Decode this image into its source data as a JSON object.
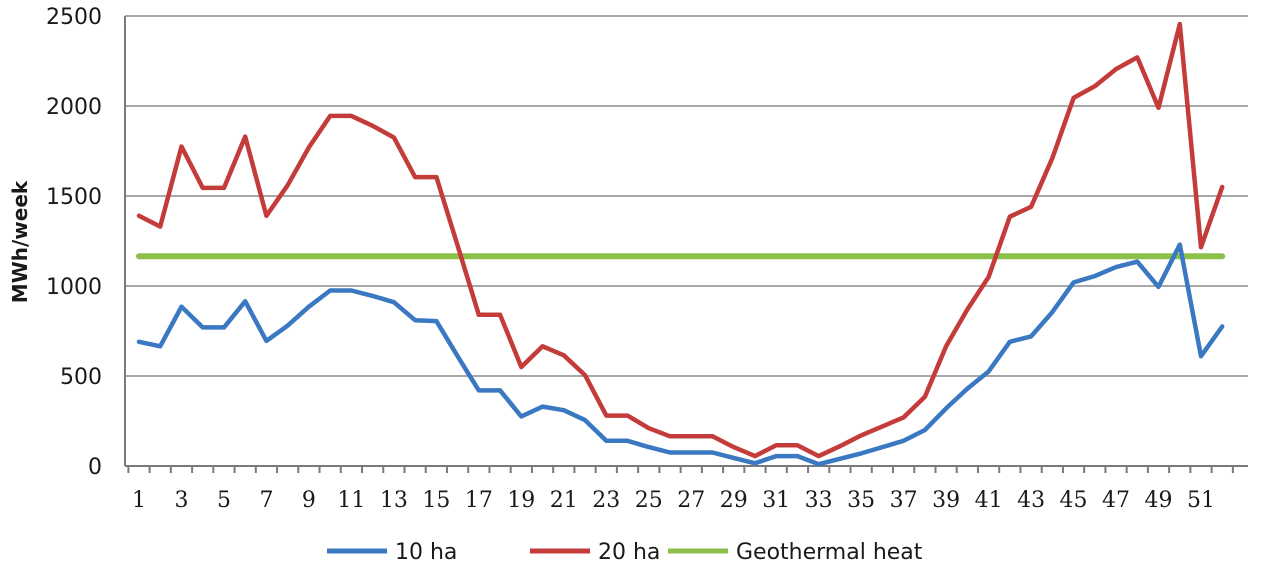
{
  "chart_data": {
    "type": "line",
    "title": "",
    "xlabel": "",
    "ylabel": "MWh/week",
    "ylim": [
      0,
      2500
    ],
    "yticks": [
      0,
      500,
      1000,
      1500,
      2000,
      2500
    ],
    "xlim": [
      1,
      52
    ],
    "xtick_labels": [
      "1",
      "3",
      "5",
      "7",
      "9",
      "11",
      "13",
      "15",
      "17",
      "19",
      "21",
      "23",
      "25",
      "27",
      "29",
      "31",
      "33",
      "35",
      "37",
      "39",
      "41",
      "43",
      "45",
      "47",
      "49",
      "51"
    ],
    "grid": "horizontal",
    "legend_position": "bottom",
    "x": [
      1,
      2,
      3,
      4,
      5,
      6,
      7,
      8,
      9,
      10,
      11,
      12,
      13,
      14,
      15,
      16,
      17,
      18,
      19,
      20,
      21,
      22,
      23,
      24,
      25,
      26,
      27,
      28,
      29,
      30,
      31,
      32,
      33,
      34,
      35,
      36,
      37,
      38,
      39,
      40,
      41,
      42,
      43,
      44,
      45,
      46,
      47,
      48,
      49,
      50,
      51,
      52
    ],
    "series": [
      {
        "name": "10 ha",
        "color": "#3a78c2",
        "values": [
          690,
          665,
          885,
          770,
          770,
          915,
          695,
          780,
          885,
          975,
          975,
          945,
          910,
          810,
          805,
          610,
          420,
          420,
          275,
          330,
          310,
          255,
          140,
          140,
          105,
          75,
          75,
          75,
          45,
          15,
          55,
          55,
          10,
          40,
          70,
          105,
          140,
          200,
          320,
          430,
          525,
          690,
          720,
          855,
          1020,
          1055,
          1105,
          1135,
          995,
          1230,
          610,
          775
        ]
      },
      {
        "name": "20 ha",
        "color": "#c43c3a",
        "values": [
          1390,
          1330,
          1775,
          1545,
          1545,
          1830,
          1390,
          1560,
          1770,
          1945,
          1945,
          1890,
          1825,
          1605,
          1605,
          1225,
          840,
          840,
          550,
          665,
          615,
          505,
          280,
          280,
          210,
          165,
          165,
          165,
          105,
          55,
          115,
          115,
          55,
          110,
          170,
          220,
          270,
          385,
          665,
          870,
          1050,
          1385,
          1440,
          1710,
          2045,
          2110,
          2205,
          2270,
          1990,
          2455,
          1215,
          1550
        ]
      },
      {
        "name": "Geothermal heat",
        "color": "#8dc04b",
        "values": [
          1165,
          1165,
          1165,
          1165,
          1165,
          1165,
          1165,
          1165,
          1165,
          1165,
          1165,
          1165,
          1165,
          1165,
          1165,
          1165,
          1165,
          1165,
          1165,
          1165,
          1165,
          1165,
          1165,
          1165,
          1165,
          1165,
          1165,
          1165,
          1165,
          1165,
          1165,
          1165,
          1165,
          1165,
          1165,
          1165,
          1165,
          1165,
          1165,
          1165,
          1165,
          1165,
          1165,
          1165,
          1165,
          1165,
          1165,
          1165,
          1165,
          1165,
          1165,
          1165
        ]
      }
    ]
  }
}
